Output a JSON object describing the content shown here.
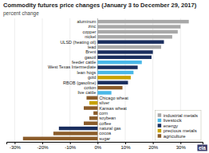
{
  "chart_data": {
    "type": "bar",
    "orientation": "horizontal",
    "stacked": true,
    "title": "Commodity futures price changes (January 3 to December 29, 2017)",
    "xlabel": "percent change",
    "annotation": "eia",
    "categories": [
      "aluminum",
      "zinc",
      "copper",
      "nickel",
      "ULSD (heating oil)",
      "lead",
      "Brent",
      "gasoil",
      "feeder cattle",
      "West Texas Intermediate",
      "lean hogs",
      "gold",
      "RBOB (gasoline)",
      "cotton",
      "live cattle",
      "Chicago wheat",
      "silver",
      "Kansas wheat",
      "corn",
      "soybean",
      "coffee",
      "natural gas",
      "cocoa",
      "sugar"
    ],
    "series": [
      {
        "name": "industrial metals",
        "color": "#a8a8a8",
        "values": [
          33,
          30,
          29,
          27,
          null,
          23,
          null,
          null,
          null,
          null,
          null,
          null,
          null,
          null,
          null,
          null,
          null,
          null,
          null,
          null,
          null,
          null,
          null,
          null
        ]
      },
      {
        "name": "livestock",
        "color": "#4ab8e8",
        "values": [
          null,
          null,
          null,
          null,
          null,
          null,
          null,
          null,
          16,
          null,
          13,
          null,
          null,
          null,
          5,
          null,
          null,
          null,
          null,
          null,
          null,
          null,
          null,
          null
        ]
      },
      {
        "name": "energy",
        "color": "#1a2e5e",
        "values": [
          null,
          null,
          null,
          null,
          24,
          null,
          20,
          19.5,
          null,
          14.5,
          null,
          null,
          11,
          null,
          null,
          null,
          null,
          null,
          null,
          null,
          null,
          -14,
          null,
          null
        ]
      },
      {
        "name": "precious metals",
        "color": "#c8a200",
        "values": [
          null,
          null,
          null,
          null,
          null,
          null,
          null,
          null,
          null,
          null,
          null,
          12,
          null,
          null,
          null,
          null,
          -3,
          null,
          null,
          null,
          null,
          null,
          null,
          null
        ]
      },
      {
        "name": "agriculture",
        "color": "#8B5c2a",
        "values": [
          null,
          null,
          null,
          null,
          null,
          null,
          null,
          null,
          null,
          null,
          null,
          null,
          null,
          9,
          null,
          -4,
          null,
          -5,
          -1.5,
          -3,
          -5,
          null,
          -16,
          -27
        ]
      }
    ],
    "xlim": [
      -33,
      38
    ],
    "xticks": [
      {
        "value": -30,
        "label": "-30%"
      },
      {
        "value": -20,
        "label": "-20%"
      },
      {
        "value": -10,
        "label": "-10%"
      },
      {
        "value": 0,
        "label": "0%"
      },
      {
        "value": 10,
        "label": "10%"
      },
      {
        "value": 20,
        "label": "20%"
      },
      {
        "value": 30,
        "label": "30%"
      }
    ],
    "grid": true,
    "legend": "lower right"
  }
}
